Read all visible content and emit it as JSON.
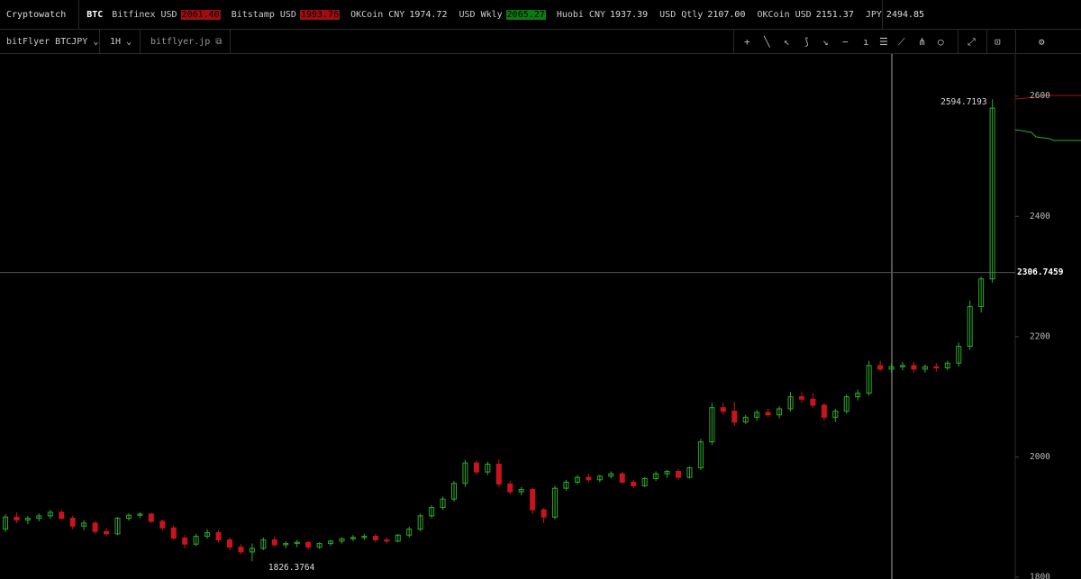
{
  "header": {
    "brand": "Cryptowatch",
    "asset": "BTC",
    "tickers": [
      {
        "label": "Bitfinex USD",
        "price": "2061.40",
        "highlight": "red"
      },
      {
        "label": "Bitstamp USD",
        "price": "1993.76",
        "highlight": "red"
      },
      {
        "label": "OKCoin CNY",
        "price": "1974.72"
      },
      {
        "label": "USD Wkly",
        "price": "2065.27",
        "highlight": "green"
      },
      {
        "label": "Huobi CNY",
        "price": "1937.39"
      },
      {
        "label": "USD Qtly",
        "price": "2107.00"
      },
      {
        "label": "OKCoin USD",
        "price": "2151.37"
      },
      {
        "label": "JPY",
        "price": "2494.85"
      }
    ]
  },
  "toolbar": {
    "market": "bitFlyer BTCJPY",
    "interval": "1H",
    "exchange_link": "bitflyer.jp"
  },
  "chart_data": {
    "type": "candlestick",
    "up_color": "#2fa82f",
    "down_color": "#c8141e",
    "ylim": [
      1797,
      2670
    ],
    "yticks": [
      1800,
      2000,
      2200,
      2400,
      2600
    ],
    "crosshair": 2306.7459,
    "open": [
      1880,
      1900,
      1895,
      1898,
      1902,
      1908,
      1898,
      1885,
      1890,
      1876,
      1872,
      1898,
      1903,
      1905,
      1893,
      1882,
      1865,
      1855,
      1868,
      1874,
      1862,
      1850,
      1842,
      1848,
      1862,
      1854,
      1856,
      1858,
      1850,
      1856,
      1860,
      1864,
      1866,
      1868,
      1862,
      1860,
      1870,
      1880,
      1902,
      1916,
      1930,
      1956,
      1990,
      1975,
      1988,
      1955,
      1942,
      1946,
      1912,
      1900,
      1948,
      1958,
      1966,
      1962,
      1968,
      1972,
      1958,
      1952,
      1964,
      1972,
      1976,
      1966,
      1982,
      2025,
      2082,
      2076,
      2058,
      2066,
      2074,
      2070,
      2080,
      2100,
      2096,
      2086,
      2066,
      2076,
      2100,
      2106,
      2152,
      2146,
      2150,
      2152,
      2146,
      2150,
      2148,
      2156,
      2184,
      2250,
      2296
    ],
    "high": [
      1905,
      1908,
      1902,
      1906,
      1912,
      1912,
      1902,
      1895,
      1893,
      1882,
      1900,
      1906,
      1908,
      1907,
      1896,
      1886,
      1870,
      1872,
      1880,
      1878,
      1866,
      1855,
      1856,
      1866,
      1868,
      1860,
      1862,
      1860,
      1858,
      1862,
      1866,
      1870,
      1872,
      1872,
      1866,
      1872,
      1884,
      1906,
      1920,
      1934,
      1960,
      1995,
      1994,
      1992,
      1996,
      1960,
      1950,
      1948,
      1915,
      1952,
      1962,
      1970,
      1972,
      1970,
      1976,
      1975,
      1962,
      1966,
      1976,
      1978,
      1980,
      1984,
      2030,
      2090,
      2090,
      2092,
      2070,
      2078,
      2080,
      2084,
      2108,
      2108,
      2106,
      2090,
      2080,
      2104,
      2112,
      2160,
      2160,
      2156,
      2158,
      2158,
      2154,
      2156,
      2160,
      2190,
      2260,
      2300,
      2594.7193
    ],
    "low": [
      1875,
      1890,
      1888,
      1893,
      1897,
      1895,
      1880,
      1878,
      1872,
      1868,
      1870,
      1894,
      1898,
      1890,
      1878,
      1862,
      1848,
      1852,
      1864,
      1858,
      1845,
      1838,
      1826.3764,
      1845,
      1850,
      1848,
      1850,
      1846,
      1847,
      1852,
      1856,
      1860,
      1862,
      1858,
      1856,
      1858,
      1866,
      1876,
      1898,
      1912,
      1926,
      1950,
      1970,
      1970,
      1950,
      1938,
      1936,
      1905,
      1890,
      1896,
      1944,
      1954,
      1958,
      1958,
      1964,
      1955,
      1948,
      1950,
      1960,
      1965,
      1962,
      1964,
      1978,
      2020,
      2070,
      2052,
      2055,
      2060,
      2066,
      2064,
      2076,
      2090,
      2082,
      2060,
      2058,
      2072,
      2094,
      2102,
      2142,
      2140,
      2144,
      2140,
      2140,
      2142,
      2144,
      2150,
      2178,
      2240,
      2290
    ],
    "close": [
      1900,
      1895,
      1898,
      1902,
      1908,
      1898,
      1885,
      1890,
      1876,
      1872,
      1898,
      1903,
      1905,
      1893,
      1882,
      1865,
      1855,
      1868,
      1874,
      1862,
      1850,
      1842,
      1848,
      1862,
      1854,
      1856,
      1858,
      1850,
      1856,
      1860,
      1864,
      1866,
      1868,
      1862,
      1860,
      1870,
      1880,
      1902,
      1916,
      1930,
      1956,
      1990,
      1975,
      1988,
      1955,
      1942,
      1946,
      1912,
      1900,
      1948,
      1958,
      1966,
      1962,
      1968,
      1972,
      1958,
      1952,
      1964,
      1972,
      1976,
      1966,
      1982,
      2025,
      2082,
      2076,
      2058,
      2066,
      2074,
      2070,
      2080,
      2100,
      2096,
      2086,
      2066,
      2076,
      2100,
      2106,
      2152,
      2146,
      2150,
      2152,
      2146,
      2150,
      2148,
      2156,
      2184,
      2250,
      2296,
      2580
    ]
  }
}
